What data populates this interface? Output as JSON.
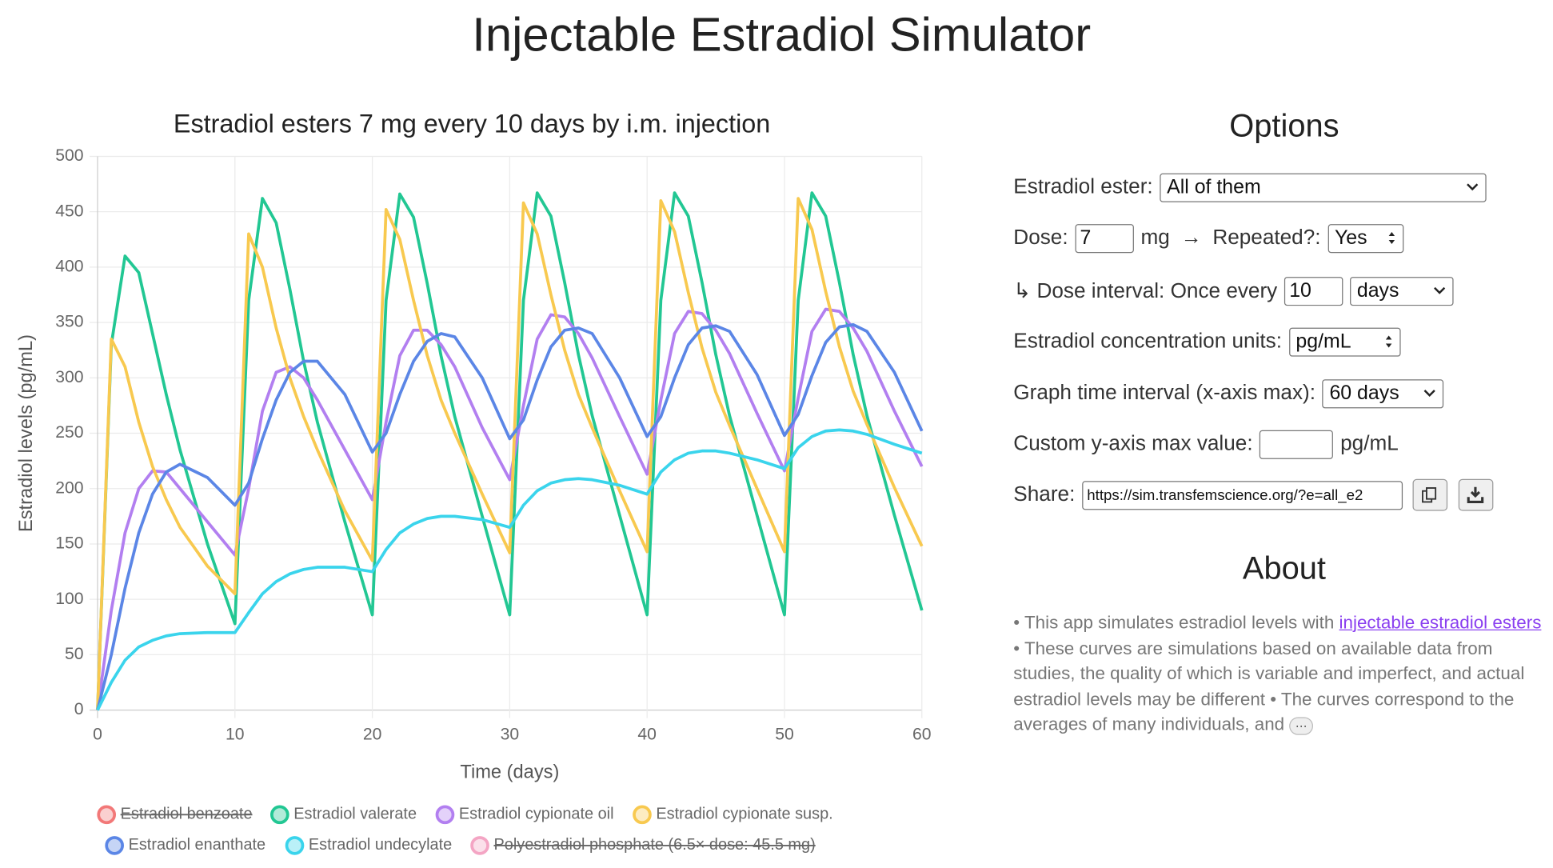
{
  "title": "Injectable Estradiol Simulator",
  "chart_data": {
    "type": "line",
    "title": "Estradiol esters 7 mg every 10 days by i.m. injection",
    "x_label": "Time (days)",
    "y_label": "Estradiol levels (pg/mL)",
    "x": [
      0,
      1,
      2,
      3,
      4,
      5,
      6,
      8,
      10,
      11,
      12,
      13,
      14,
      15,
      16,
      18,
      20,
      21,
      22,
      23,
      24,
      25,
      26,
      28,
      30,
      31,
      32,
      33,
      34,
      35,
      36,
      38,
      40,
      41,
      42,
      43,
      44,
      45,
      46,
      48,
      50,
      51,
      52,
      53,
      54,
      55,
      56,
      58,
      60
    ],
    "xlim": [
      0,
      60
    ],
    "xticks": [
      0,
      10,
      20,
      30,
      40,
      50,
      60
    ],
    "ylim": [
      0,
      500
    ],
    "yticks": [
      0,
      50,
      100,
      150,
      200,
      250,
      300,
      350,
      400,
      450,
      500
    ],
    "grid": true,
    "series": [
      {
        "name": "Estradiol benzoate",
        "color": "#f27878",
        "hidden": true
      },
      {
        "name": "Estradiol valerate",
        "color": "#22c793",
        "values": [
          0,
          330,
          410,
          395,
          340,
          285,
          235,
          150,
          78,
          370,
          462,
          440,
          380,
          315,
          260,
          170,
          86,
          370,
          466,
          445,
          385,
          320,
          265,
          175,
          86,
          370,
          467,
          446,
          386,
          321,
          266,
          176,
          86,
          370,
          467,
          446,
          386,
          321,
          266,
          176,
          86,
          370,
          467,
          446,
          386,
          321,
          266,
          176,
          90
        ]
      },
      {
        "name": "Estradiol cypionate oil",
        "color": "#b27ff0",
        "values": [
          0,
          90,
          160,
          200,
          216,
          215,
          200,
          170,
          140,
          200,
          270,
          305,
          310,
          300,
          280,
          235,
          190,
          260,
          320,
          343,
          343,
          330,
          310,
          255,
          208,
          275,
          335,
          357,
          355,
          340,
          318,
          265,
          213,
          280,
          340,
          360,
          358,
          343,
          322,
          268,
          216,
          282,
          342,
          362,
          360,
          345,
          324,
          270,
          220
        ]
      },
      {
        "name": "Estradiol cypionate susp.",
        "color": "#f8c94f",
        "values": [
          0,
          335,
          310,
          260,
          220,
          190,
          165,
          130,
          105,
          430,
          400,
          345,
          300,
          265,
          235,
          180,
          135,
          452,
          425,
          370,
          320,
          280,
          250,
          195,
          142,
          458,
          430,
          375,
          325,
          285,
          255,
          198,
          143,
          460,
          432,
          377,
          327,
          287,
          257,
          200,
          143,
          462,
          434,
          378,
          328,
          288,
          258,
          201,
          148
        ]
      },
      {
        "name": "Estradiol enanthate",
        "color": "#5b86e6",
        "values": [
          0,
          50,
          110,
          160,
          195,
          215,
          222,
          210,
          185,
          205,
          245,
          280,
          305,
          315,
          315,
          285,
          233,
          250,
          285,
          315,
          333,
          340,
          337,
          300,
          245,
          262,
          298,
          328,
          343,
          345,
          340,
          300,
          247,
          265,
          300,
          330,
          345,
          347,
          342,
          303,
          248,
          267,
          302,
          332,
          346,
          348,
          342,
          305,
          252
        ]
      },
      {
        "name": "Estradiol undecylate",
        "color": "#3ad4ec",
        "values": [
          0,
          25,
          45,
          57,
          63,
          67,
          69,
          70,
          70,
          88,
          105,
          116,
          123,
          127,
          129,
          129,
          125,
          145,
          160,
          168,
          173,
          175,
          175,
          172,
          165,
          185,
          198,
          205,
          208,
          209,
          208,
          203,
          195,
          215,
          226,
          232,
          234,
          234,
          232,
          226,
          218,
          237,
          247,
          252,
          253,
          252,
          249,
          240,
          232
        ]
      },
      {
        "name": "Polyestradiol phosphate (6.5× dose: 45.5 mg)",
        "color": "#f4a5c4",
        "hidden": true
      }
    ]
  },
  "options": {
    "heading": "Options",
    "ester_label": "Estradiol ester:",
    "ester_value": "All of them",
    "dose_label": "Dose:",
    "dose_value": "7",
    "dose_unit": "mg",
    "arrow": "→",
    "repeated_label": "Repeated?:",
    "repeated_value": "Yes",
    "interval_label": "↳ Dose interval: Once every",
    "interval_value": "10",
    "interval_unit": "days",
    "units_label": "Estradiol concentration units:",
    "units_value": "pg/mL",
    "graph_label": "Graph time interval (x-axis max):",
    "graph_value": "60 days",
    "ymax_label": "Custom y-axis max value:",
    "ymax_unit": "pg/mL",
    "share_label": "Share:",
    "share_value": "https://sim.transfemscience.org/?e=all_e2"
  },
  "about": {
    "heading": "About",
    "text_1": "• This app simulates estradiol levels with ",
    "link": "injectable estradiol esters",
    "text_2": " • These curves are simulations based on available data from studies, the quality of which is variable and imperfect, and actual estradiol levels may be different • The curves correspond to the averages of many individuals, and",
    "more": "⋯"
  }
}
